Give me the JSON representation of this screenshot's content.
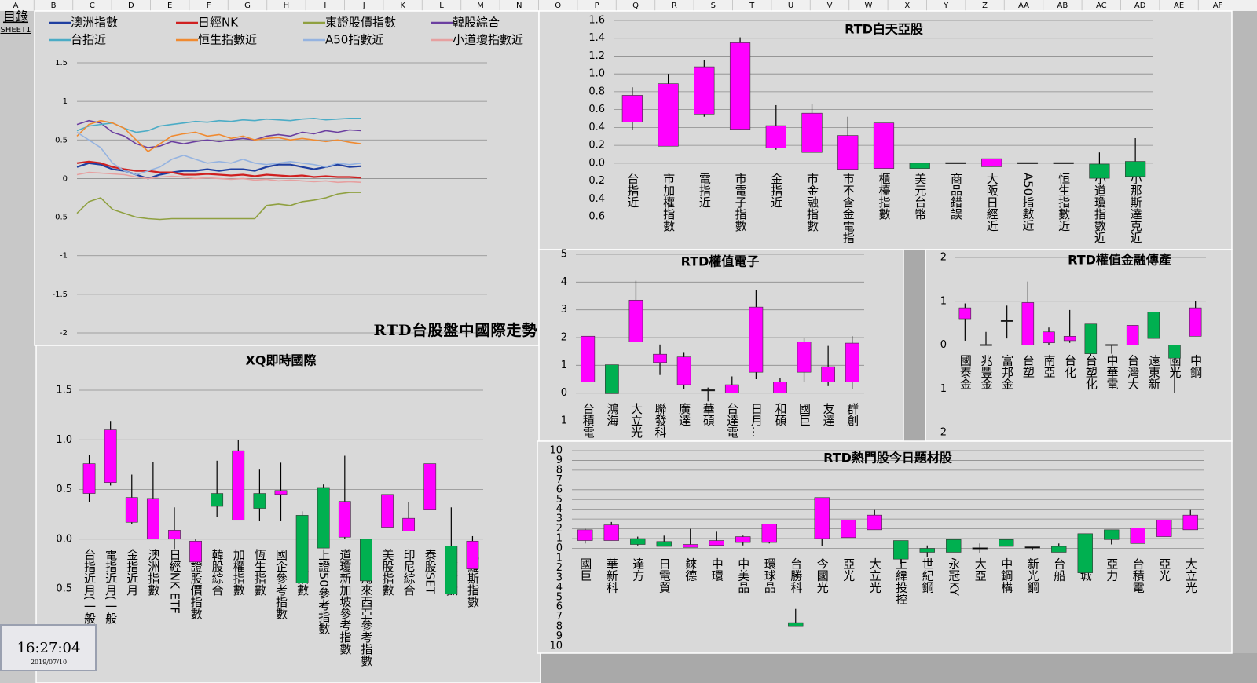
{
  "columns": [
    "A",
    "B",
    "C",
    "D",
    "E",
    "F",
    "G",
    "H",
    "I",
    "J",
    "K",
    "L",
    "M",
    "N",
    "O",
    "P",
    "Q",
    "R",
    "S",
    "T",
    "U",
    "V",
    "W",
    "X",
    "Y",
    "Z",
    "AA",
    "AB",
    "AC",
    "AD",
    "AE",
    "AF"
  ],
  "sheet_links": [
    "目錄",
    "SHEET1"
  ],
  "clock": {
    "time": "16:27:04",
    "date": "2019/07/10"
  },
  "chart_data": [
    {
      "type": "line",
      "title": "RTD台股盤中國際走勢",
      "ylim": [
        -2,
        1.5
      ],
      "yticks": [
        1.5,
        1,
        0.5,
        0,
        -0.5,
        -1,
        -1.5,
        -2
      ],
      "grid": true,
      "series": [
        {
          "name": "澳洲指數",
          "color": "#1f3fa0",
          "values": [
            0.15,
            0.2,
            0.18,
            0.12,
            0.1,
            0.05,
            0.0,
            0.05,
            0.08,
            0.1,
            0.1,
            0.12,
            0.1,
            0.12,
            0.12,
            0.1,
            0.15,
            0.18,
            0.18,
            0.15,
            0.12,
            0.15,
            0.18,
            0.15,
            0.16
          ]
        },
        {
          "name": "日經NK",
          "color": "#d02020",
          "values": [
            0.2,
            0.22,
            0.2,
            0.15,
            0.12,
            0.1,
            0.1,
            0.08,
            0.08,
            0.05,
            0.05,
            0.06,
            0.05,
            0.04,
            0.05,
            0.03,
            0.05,
            0.04,
            0.03,
            0.04,
            0.02,
            0.03,
            0.02,
            0.02,
            0.01
          ]
        },
        {
          "name": "東證股價指數",
          "color": "#8fa040",
          "values": [
            -0.45,
            -0.3,
            -0.25,
            -0.4,
            -0.45,
            -0.5,
            -0.52,
            -0.53,
            -0.52,
            -0.52,
            -0.52,
            -0.52,
            -0.52,
            -0.52,
            -0.52,
            -0.52,
            -0.35,
            -0.33,
            -0.35,
            -0.3,
            -0.28,
            -0.25,
            -0.2,
            -0.18,
            -0.18
          ]
        },
        {
          "name": "韓股綜合",
          "color": "#6b3fa0",
          "values": [
            0.7,
            0.75,
            0.72,
            0.6,
            0.55,
            0.45,
            0.4,
            0.42,
            0.48,
            0.45,
            0.48,
            0.5,
            0.48,
            0.5,
            0.52,
            0.5,
            0.55,
            0.57,
            0.55,
            0.6,
            0.58,
            0.62,
            0.6,
            0.63,
            0.62
          ]
        },
        {
          "name": "台指近",
          "color": "#4bacc6",
          "values": [
            0.62,
            0.68,
            0.7,
            0.72,
            0.65,
            0.6,
            0.62,
            0.68,
            0.7,
            0.72,
            0.74,
            0.73,
            0.75,
            0.74,
            0.76,
            0.75,
            0.77,
            0.76,
            0.75,
            0.77,
            0.78,
            0.76,
            0.77,
            0.78,
            0.78
          ]
        },
        {
          "name": "恒生指數近",
          "color": "#f08a30",
          "values": [
            0.55,
            0.7,
            0.75,
            0.72,
            0.65,
            0.5,
            0.35,
            0.45,
            0.55,
            0.58,
            0.6,
            0.55,
            0.57,
            0.52,
            0.55,
            0.5,
            0.52,
            0.53,
            0.5,
            0.52,
            0.5,
            0.48,
            0.5,
            0.47,
            0.45
          ]
        },
        {
          "name": "A50指數近",
          "color": "#95b3e0",
          "values": [
            0.6,
            0.5,
            0.4,
            0.2,
            0.1,
            0.05,
            0.1,
            0.15,
            0.25,
            0.3,
            0.25,
            0.2,
            0.22,
            0.2,
            0.25,
            0.2,
            0.18,
            0.2,
            0.22,
            0.2,
            0.18,
            0.15,
            0.2,
            0.18,
            0.2
          ]
        },
        {
          "name": "小道瓊指數近",
          "color": "#e6a0a0",
          "values": [
            0.05,
            0.08,
            0.07,
            0.06,
            0.05,
            0.02,
            0.0,
            0.02,
            0.03,
            0.02,
            0.0,
            0.01,
            0.0,
            -0.01,
            0.0,
            -0.02,
            -0.01,
            -0.03,
            -0.02,
            -0.03,
            -0.04,
            -0.03,
            -0.05,
            -0.04,
            -0.05
          ]
        }
      ]
    },
    {
      "type": "candlestick",
      "title": "XQ即時國際",
      "up_color": "#ff00ff",
      "down_color": "#00b050",
      "negative_tick_color": "#ff0000",
      "ylim": [
        -0.5,
        1.5
      ],
      "yticks": [
        1.5,
        {
          "value": 1,
          "label": "1.0"
        },
        0.5,
        {
          "value": 0,
          "label": "0.0"
        },
        {
          "value": -0.5,
          "label": "0.5"
        }
      ],
      "grid": true,
      "categories": [
        "台指近月(一般",
        "電指近月(一般",
        "金指近月",
        "澳洲指數",
        "日經NK ETF",
        "東證股價指數",
        "韓股綜合",
        "加權指數",
        "恆生指數",
        "國企參考指數",
        "上証指數",
        "上證50參考指數",
        "道瓊新加坡參考指數",
        "道瓊馬來西亞參考指數",
        "美股指數",
        "印尼綜合",
        "泰股SET",
        "印度指數",
        "俄羅斯指數"
      ],
      "open": [
        0.46,
        0.57,
        0.17,
        0,
        0,
        -0.23,
        0.46,
        0.19,
        0.46,
        0.45,
        0.24,
        0.52,
        0.02,
        0,
        0.12,
        0.08,
        0.3,
        -0.07,
        -0.3
      ],
      "close": [
        0.76,
        1.1,
        0.42,
        0.41,
        0.09,
        -0.02,
        0.33,
        0.89,
        0.31,
        0.49,
        -0.44,
        -0.09,
        0.38,
        -0.42,
        0.45,
        0.21,
        0.76,
        -0.55,
        -0.02
      ],
      "high": [
        0.85,
        1.19,
        0.65,
        0.78,
        0.32,
        0,
        0.79,
        1.0,
        0.7,
        0.77,
        0.28,
        0.55,
        0.84,
        0,
        0.45,
        0.37,
        0.76,
        0.32,
        0.03
      ],
      "low": [
        0.37,
        0.54,
        0.15,
        0,
        -0.1,
        -0.25,
        0.22,
        0.19,
        0.18,
        0.18,
        -0.44,
        -0.09,
        0,
        -0.42,
        0.12,
        0.08,
        0.3,
        -0.55,
        -0.3
      ]
    },
    {
      "type": "candlestick",
      "title": "RTD白天亞股",
      "up_color": "#ff00ff",
      "down_color": "#00b050",
      "negative_tick_color": "#ff0000",
      "ylim": [
        -0.6,
        1.6
      ],
      "yticks": [
        1.6,
        1.4,
        1.2,
        {
          "value": 1,
          "label": "1.0"
        },
        0.8,
        0.6,
        0.4,
        0.2,
        {
          "value": 0,
          "label": "0.0"
        },
        {
          "value": -0.2,
          "label": "0.2"
        },
        {
          "value": -0.4,
          "label": "0.4"
        },
        {
          "value": -0.6,
          "label": "0.6"
        }
      ],
      "grid": true,
      "categories": [
        "台指近",
        "市加權指數",
        "電指近",
        "市電子指數",
        "金指近",
        "市金融指數",
        "市不含金電指",
        "櫃檯指數",
        "美元台幣",
        "商品錯誤",
        "大阪日經近",
        "A50指數近",
        "恒生指數近",
        "小道瓊指數近",
        "小那斯達克近"
      ],
      "open": [
        0.46,
        0.19,
        0.55,
        0.38,
        0.17,
        0.12,
        -0.07,
        -0.06,
        0,
        0,
        -0.04,
        0,
        0,
        -0.01,
        0.02
      ],
      "close": [
        0.76,
        0.89,
        1.08,
        1.35,
        0.42,
        0.56,
        0.31,
        0.45,
        -0.06,
        0,
        0.05,
        0,
        0,
        -0.17,
        -0.15
      ],
      "high": [
        0.85,
        1.0,
        1.16,
        1.41,
        0.65,
        0.66,
        0.52,
        0.45,
        0,
        0,
        0.05,
        0,
        0,
        0.12,
        0.28
      ],
      "low": [
        0.37,
        0.19,
        0.52,
        0.38,
        0.15,
        0.12,
        -0.07,
        -0.06,
        -0.06,
        0,
        -0.04,
        0,
        0,
        -0.17,
        -0.15
      ]
    },
    {
      "type": "candlestick",
      "title": "RTD權值電子",
      "up_color": "#ff00ff",
      "down_color": "#00b050",
      "negative_tick_color": "#ff0000",
      "ylim": [
        -1,
        5
      ],
      "yticks": [
        5,
        4,
        3,
        2,
        1,
        0,
        {
          "value": -1,
          "label": "1"
        }
      ],
      "grid": true,
      "categories": [
        "台積電",
        "鴻海",
        "大立光",
        "聯發科",
        "廣達",
        "華碩",
        "台達電",
        "日月…",
        "和碩",
        "國巨",
        "友達",
        "群創"
      ],
      "open": [
        0.4,
        1.02,
        1.85,
        1.1,
        0.3,
        0.1,
        0,
        0.75,
        0,
        0.75,
        0.4,
        0.4
      ],
      "close": [
        2.05,
        -0.02,
        3.35,
        1.4,
        1.3,
        0.1,
        0.3,
        3.1,
        0.4,
        1.85,
        0.95,
        1.8
      ],
      "high": [
        2.05,
        1.02,
        4.05,
        1.75,
        1.45,
        0.2,
        0.6,
        3.7,
        0.55,
        2.0,
        1.7,
        2.05
      ],
      "low": [
        0.4,
        -0.02,
        1.85,
        0.65,
        0.15,
        -0.3,
        0,
        0.5,
        0,
        0.4,
        0.25,
        0.15
      ]
    },
    {
      "type": "candlestick",
      "title": "RTD權值金融傳產",
      "up_color": "#ff00ff",
      "down_color": "#00b050",
      "negative_tick_color": "#ff0000",
      "ylim": [
        -2,
        2
      ],
      "yticks": [
        2,
        1,
        0,
        {
          "value": -1,
          "label": "1"
        },
        {
          "value": -2,
          "label": "2"
        }
      ],
      "grid": true,
      "categories": [
        "國泰金",
        "兆豐金",
        "富邦金",
        "台塑",
        "南亞",
        "台化",
        "台塑化",
        "中華電",
        "台灣大",
        "遠東新",
        "國光",
        "中鋼"
      ],
      "open": [
        0.6,
        0,
        0.55,
        0,
        0.05,
        0.1,
        0.48,
        0,
        0,
        0.75,
        0,
        0.2
      ],
      "close": [
        0.85,
        0,
        0.55,
        0.97,
        0.3,
        0.2,
        -0.2,
        0,
        0.45,
        0.15,
        -0.3,
        0.85
      ],
      "high": [
        0.95,
        0.3,
        0.9,
        1.45,
        0.4,
        0.8,
        0.48,
        0,
        0.45,
        0.75,
        0,
        1.0
      ],
      "low": [
        0.1,
        0,
        0.15,
        0,
        0,
        0.05,
        -0.25,
        -0.2,
        0,
        0.15,
        -1.1,
        0.2
      ]
    },
    {
      "type": "candlestick",
      "title": "RTD熱門股今日題材股",
      "up_color": "#ff00ff",
      "down_color": "#00b050",
      "negative_tick_color": "#ff0000",
      "ylim": [
        -10,
        10
      ],
      "yticks": [
        10,
        9,
        8,
        7,
        6,
        5,
        4,
        3,
        2,
        1,
        0,
        {
          "value": -1,
          "label": "1"
        },
        {
          "value": -2,
          "label": "2"
        },
        {
          "value": -3,
          "label": "3"
        },
        {
          "value": -4,
          "label": "4"
        },
        {
          "value": -5,
          "label": "5"
        },
        {
          "value": -6,
          "label": "6"
        },
        {
          "value": -7,
          "label": "7"
        },
        {
          "value": -8,
          "label": "8"
        },
        {
          "value": -9,
          "label": "9"
        },
        {
          "value": -10,
          "label": "10"
        }
      ],
      "grid": true,
      "categories": [
        "國巨",
        "華新科",
        "達方",
        "日電貿",
        "錸德",
        "中環",
        "中美晶",
        "環球晶",
        "台勝科",
        "今國光",
        "亞光",
        "大立光",
        "上緯投控",
        "世紀鋼",
        "永冠KY",
        "大亞",
        "中鋼構",
        "新光鋼",
        "台船",
        "華城",
        "亞力",
        "台積電",
        "亞光",
        "大立光"
      ],
      "open": [
        0.8,
        0.8,
        1.0,
        0.7,
        0.1,
        0.3,
        0.6,
        0.6,
        -7.6,
        1.0,
        1.1,
        1.9,
        0.8,
        0,
        0.9,
        0,
        0.9,
        0,
        0.2,
        1.5,
        1.9,
        0.5,
        1.2,
        1.9
      ],
      "close": [
        1.9,
        2.4,
        0.4,
        0.2,
        0.4,
        0.8,
        1.2,
        2.5,
        -8.0,
        5.2,
        2.9,
        3.4,
        -1.1,
        -0.4,
        -0.4,
        0,
        0.2,
        0.1,
        -0.4,
        -2.5,
        0.9,
        2.1,
        2.9,
        3.4
      ],
      "high": [
        2.0,
        2.7,
        1.2,
        1.3,
        2.0,
        1.7,
        1.3,
        2.5,
        -6.2,
        5.2,
        2.9,
        4.0,
        0.8,
        0.3,
        0.9,
        0.5,
        0.9,
        0.1,
        0.5,
        1.5,
        1.9,
        2.1,
        2.9,
        4.0
      ],
      "low": [
        0.5,
        0.8,
        0.3,
        0.2,
        0.1,
        0.3,
        0.3,
        0.5,
        -8.0,
        0.2,
        1.1,
        1.9,
        -1.6,
        -0.9,
        -0.4,
        -0.5,
        0.2,
        -0.1,
        -0.4,
        -2.5,
        0.4,
        0.5,
        1.2,
        1.9
      ]
    }
  ]
}
